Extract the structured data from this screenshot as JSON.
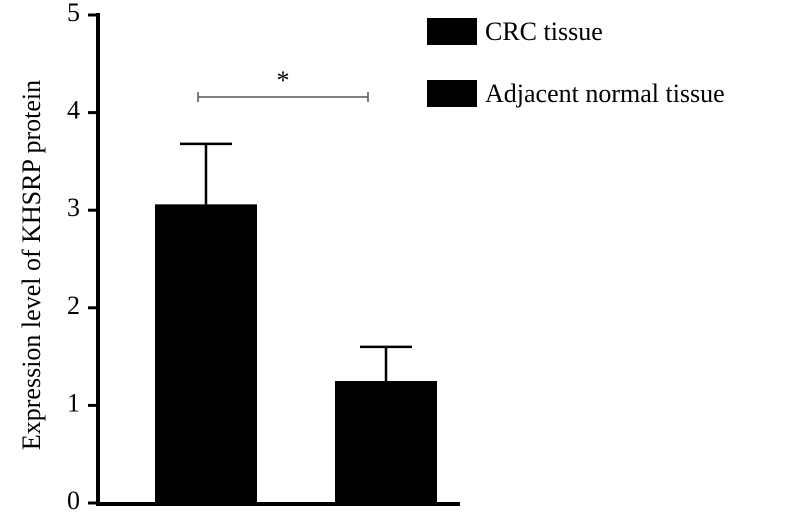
{
  "chart_data": {
    "type": "bar",
    "y_label": "Expression level of KHSRP protein",
    "categories": [
      null
    ],
    "series": [
      {
        "name": "CRC tissue",
        "color": "#000000",
        "values": [
          3.06
        ],
        "errors": [
          0.62
        ]
      },
      {
        "name": "Adjacent normal tissue",
        "color": "#000000",
        "values": [
          1.25
        ],
        "errors": [
          0.35
        ]
      }
    ],
    "annotation": "*",
    "ylim": [
      0,
      5
    ],
    "yticks": [
      0,
      1,
      2,
      3,
      4,
      5
    ]
  }
}
